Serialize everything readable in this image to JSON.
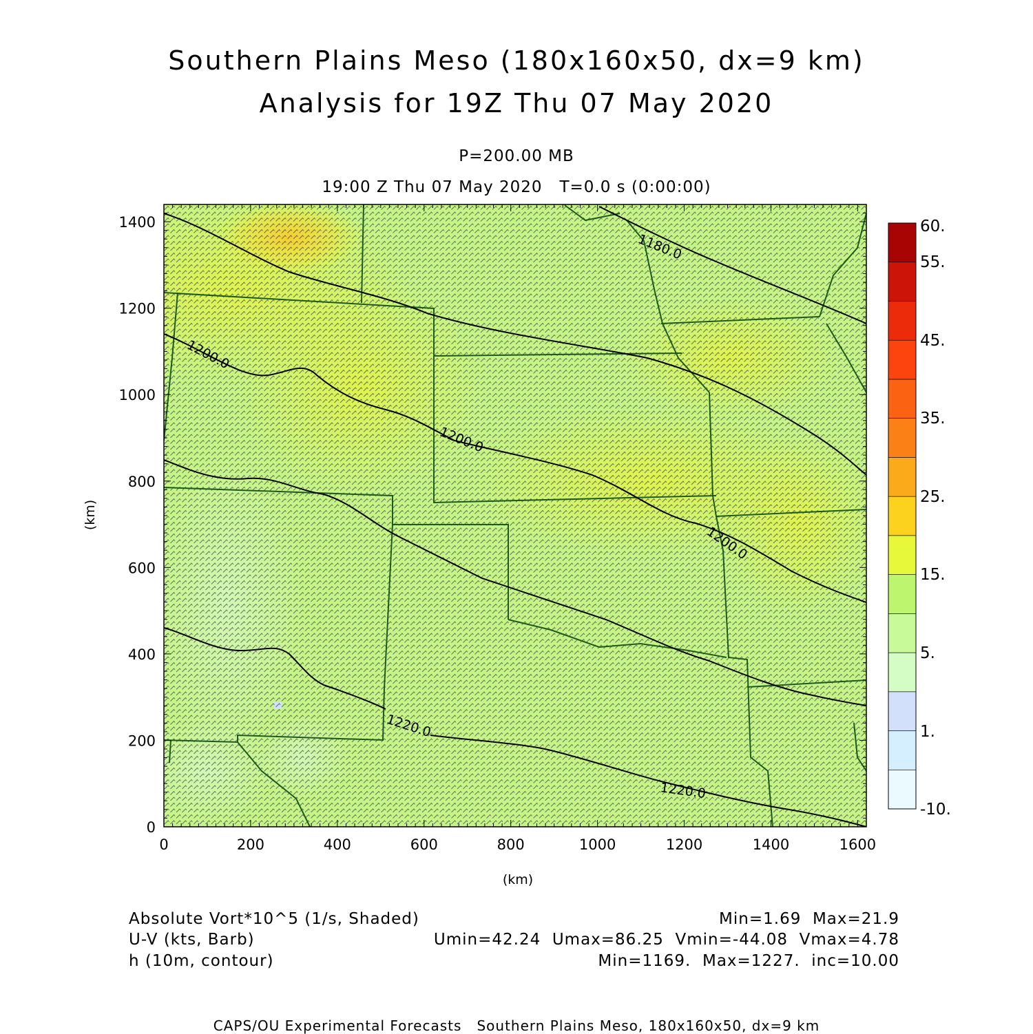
{
  "title": {
    "line1": "Southern Plains Meso (180x160x50, dx=9 km)",
    "line2": "Analysis for 19Z Thu 07 May 2020"
  },
  "subtitle": {
    "level": "P=200.00 MB",
    "time": "19:00 Z Thu 07 May 2020   T=0.0 s (0:00:00)"
  },
  "axes": {
    "xlabel": "(km)",
    "ylabel": "(km)",
    "xlim": [
      0,
      1620
    ],
    "ylim": [
      0,
      1440
    ],
    "xticks": [
      "0",
      "200",
      "400",
      "600",
      "800",
      "1000",
      "1200",
      "1400",
      "1600"
    ],
    "yticks": [
      "0",
      "200",
      "400",
      "600",
      "800",
      "1000",
      "1200",
      "1400"
    ]
  },
  "colorbar": {
    "labels": [
      "60.",
      "55.",
      "45.",
      "35.",
      "25.",
      "15.",
      "5.",
      "1.",
      "-10."
    ],
    "colors": [
      "#eafaff",
      "#d6efff",
      "#d2e0fb",
      "#d4fdc6",
      "#c8fa9a",
      "#bdf56f",
      "#e7f73a",
      "#fdd21e",
      "#fbaa1a",
      "#fb8016",
      "#fb6312",
      "#fd430e",
      "#ec2b0a",
      "#cc1508",
      "#a80404"
    ]
  },
  "contour_labels": [
    "1180.0",
    "1200.0",
    "1200.0",
    "1200.0",
    "1220.0",
    "1220.0"
  ],
  "footer": {
    "vort_label": "Absolute Vort*10^5 (1/s, Shaded)",
    "vort_stats": "Min=1.69  Max=21.9",
    "wind_label": "U-V (kts, Barb)",
    "wind_stats": "Umin=42.24  Umax=86.25  Vmin=-44.08  Vmax=4.78",
    "h_label": "h (10m, contour)",
    "h_stats": "Min=1169.  Max=1227.  inc=10.00",
    "credit": "CAPS/OU Experimental Forecasts   Southern Plains Meso, 180x160x50, dx=9 km"
  },
  "colors": {
    "state_border": "#1d5a1d",
    "contour": "#000000",
    "barb": "#444444"
  }
}
